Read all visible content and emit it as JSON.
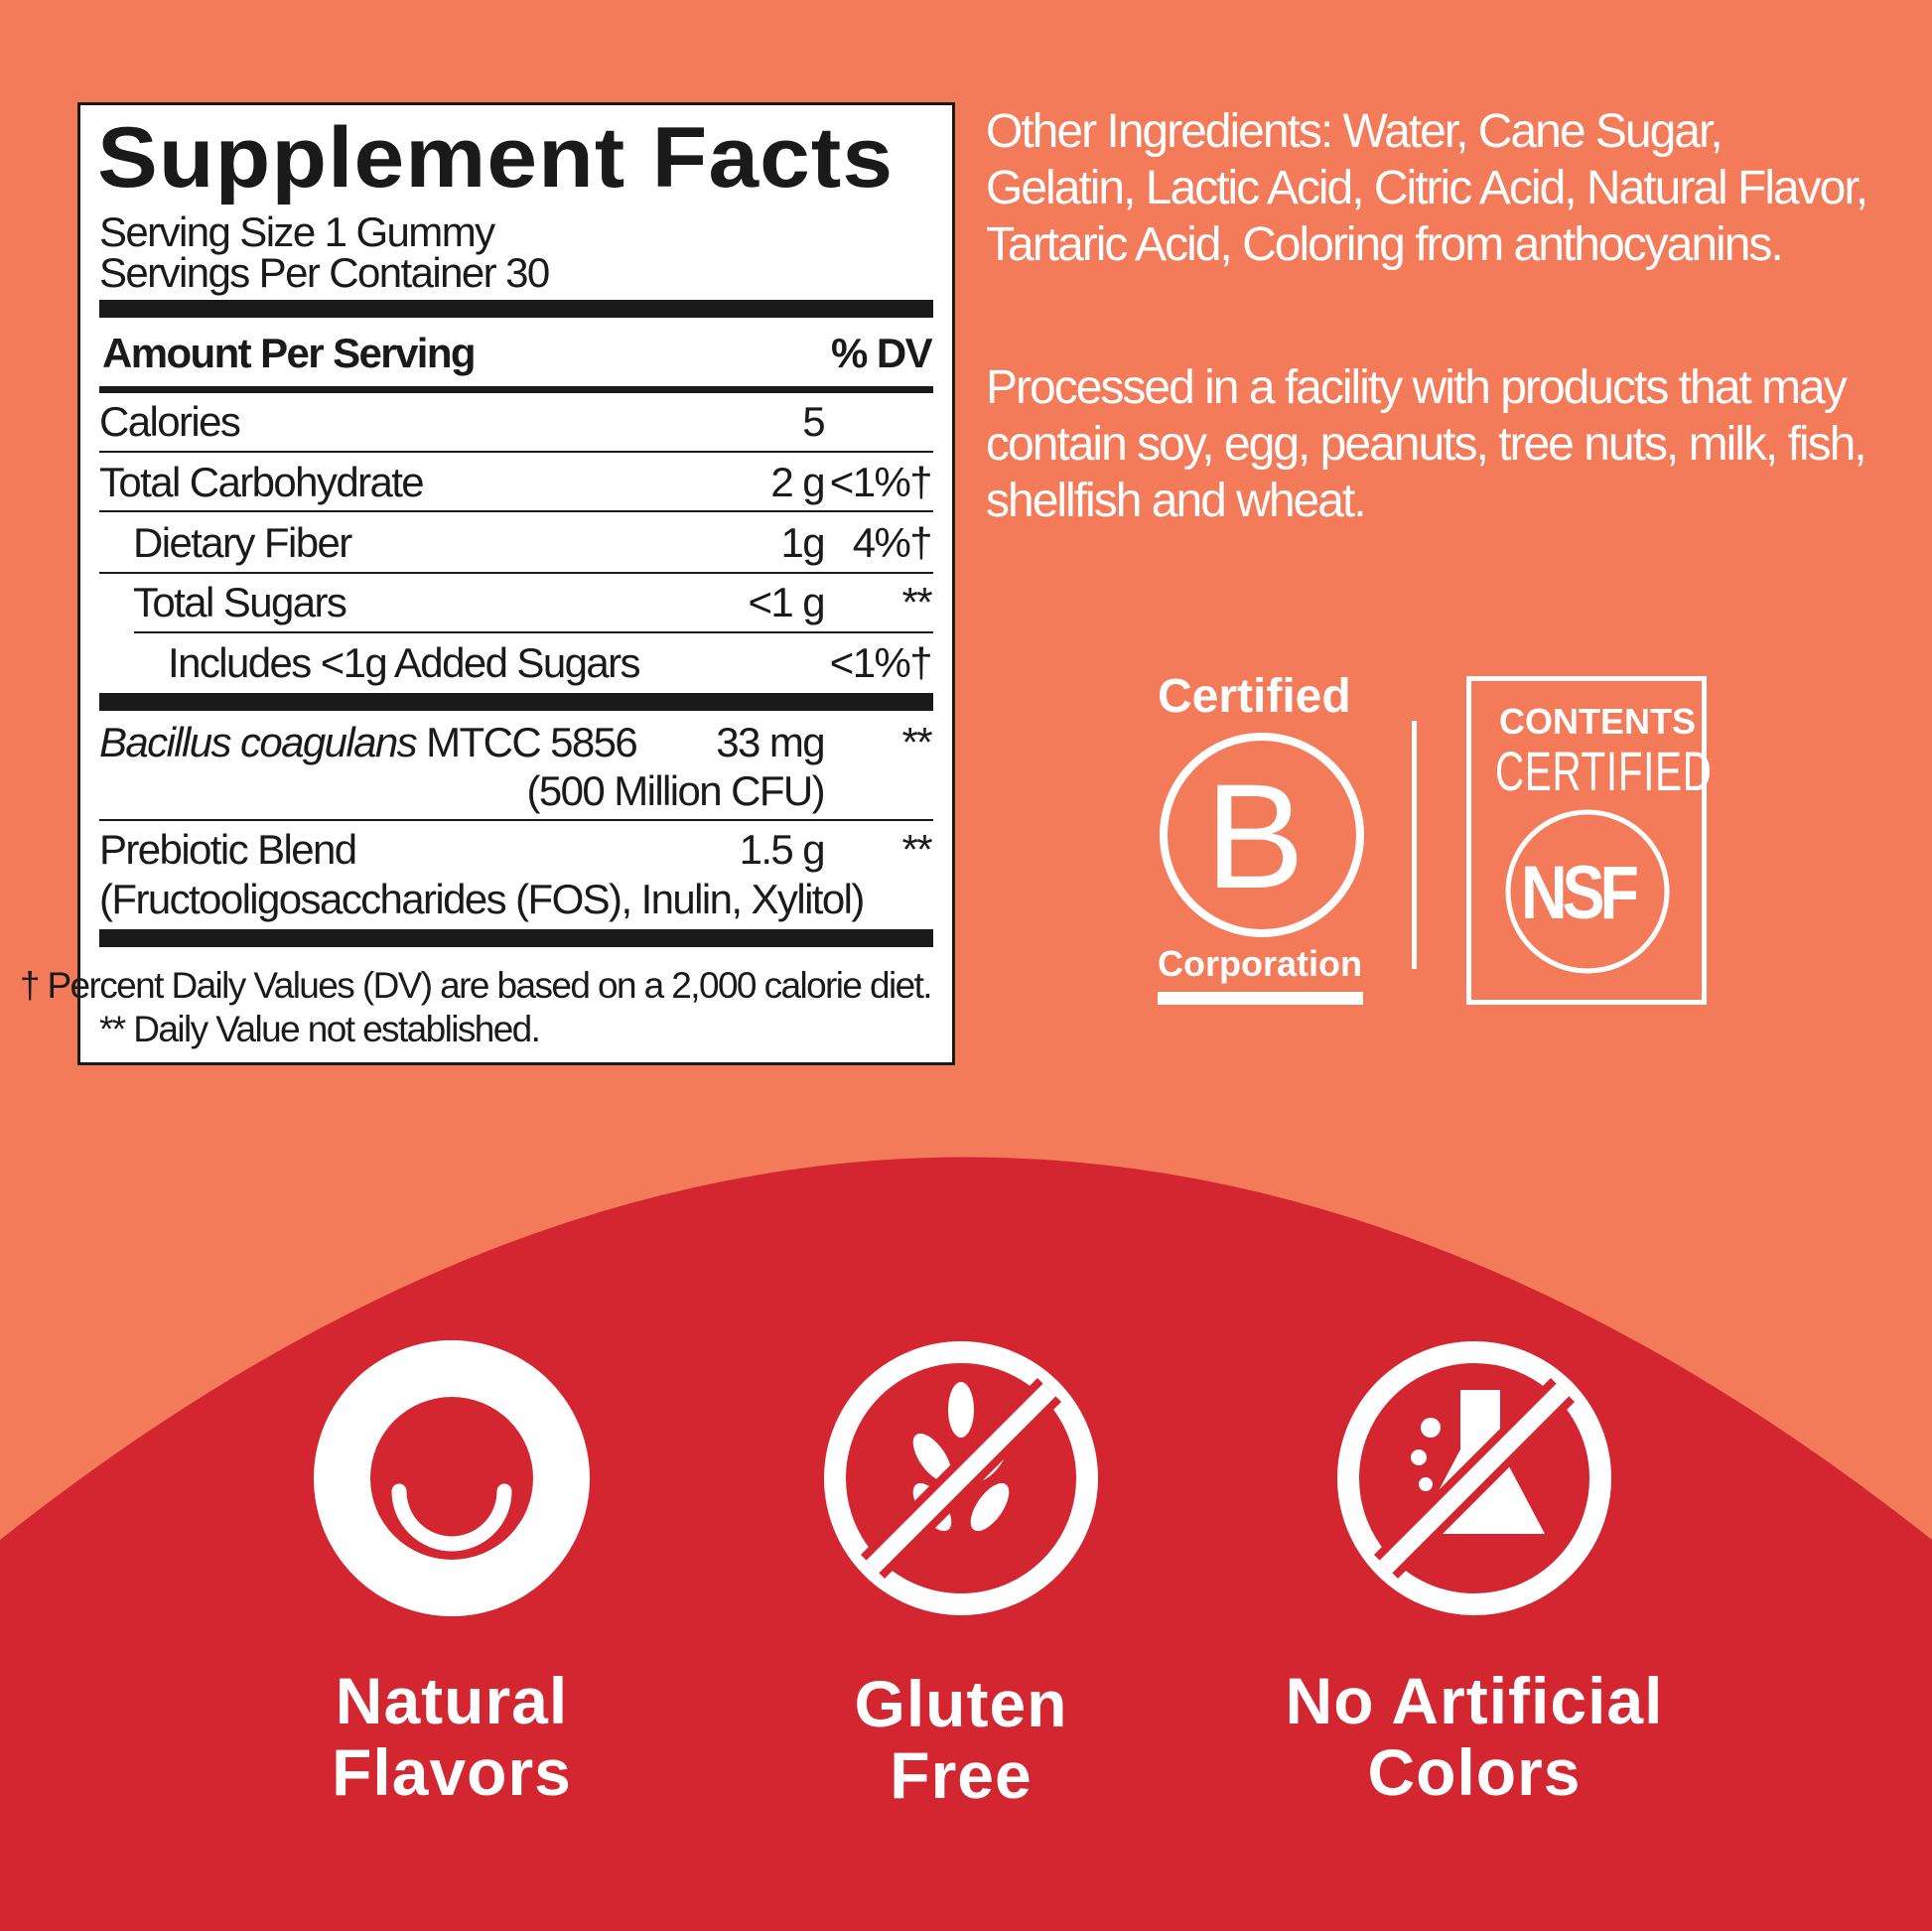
{
  "colors": {
    "background": "#F47B5A",
    "band": "#D42630",
    "text_light": "#ffffff",
    "label_text": "#1a1a1a"
  },
  "facts": {
    "title": "Supplement Facts",
    "serving_size": "Serving Size 1 Gummy",
    "servings_per_container": "Servings Per Container 30",
    "header_amount": "Amount Per Serving",
    "header_dv": "% DV",
    "rows": [
      {
        "name": "Calories",
        "amount": "5",
        "dv": ""
      },
      {
        "name": "Total Carbohydrate",
        "amount": "2 g",
        "dv": "<1%†"
      },
      {
        "name": "Dietary Fiber",
        "amount": "1g",
        "dv": "4%†"
      },
      {
        "name": "Total Sugars",
        "amount": "<1 g",
        "dv": "**"
      },
      {
        "name": "Includes <1g Added Sugars",
        "amount": "",
        "dv": "<1%†"
      }
    ],
    "probiotic": {
      "name_italic": "Bacillus coagulans",
      "name_rest": " MTCC 5856",
      "amount": "33 mg",
      "amount_sub": "(500 Million CFU)",
      "dv": "**"
    },
    "prebiotic": {
      "name": "Prebiotic Blend",
      "sub": "(Fructooligosaccharides (FOS), Inulin, Xylitol)",
      "amount": "1.5 g",
      "dv": "**"
    },
    "footnote1": "† Percent Daily Values (DV) are based on a 2,000 calorie diet.",
    "footnote2": "** Daily Value not established."
  },
  "other_ingredients": "Other Ingredients:  Water, Cane Sugar, Gelatin, Lactic Acid, Citric Acid, Natural Flavor, Tartaric Acid, Coloring from anthocyanins.",
  "allergen": "Processed in a facility with products that may contain soy, egg, peanuts, tree nuts, milk, fish, shellfish and wheat.",
  "badges": {
    "bcorp": {
      "top": "Certified",
      "letter": "B",
      "bottom": "Corporation"
    },
    "nsf": {
      "line1": "CONTENTS",
      "line2": "CERTIFIED",
      "mark": "NSF"
    }
  },
  "features": [
    {
      "icon": "smile-icon",
      "line1": "Natural",
      "line2": "Flavors"
    },
    {
      "icon": "no-wheat-icon",
      "line1": "Gluten",
      "line2": "Free"
    },
    {
      "icon": "no-flask-icon",
      "line1": "No Artificial",
      "line2": "Colors"
    }
  ]
}
